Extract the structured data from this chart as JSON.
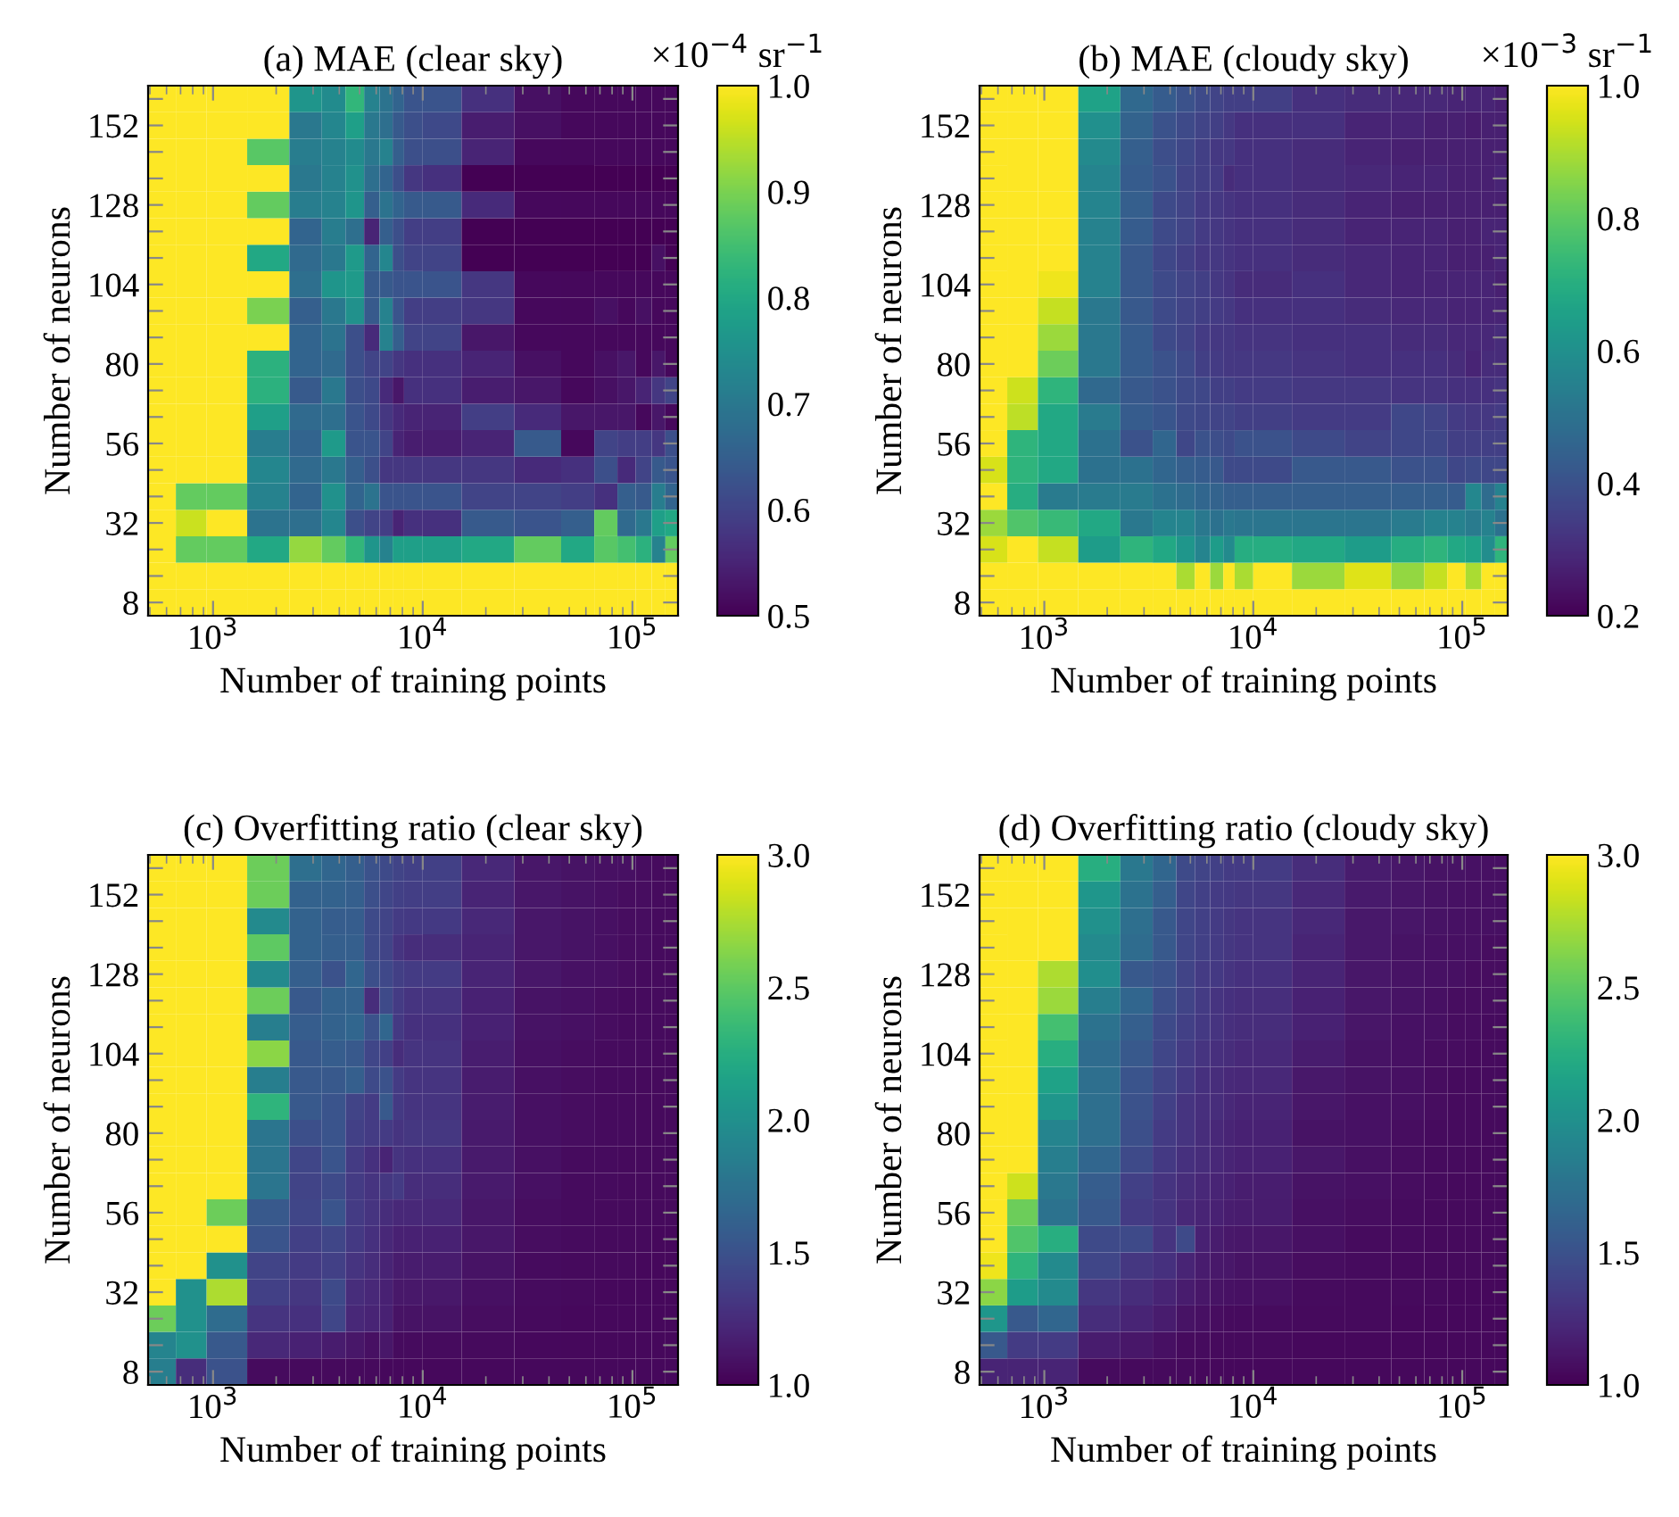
{
  "chart_data": [
    {
      "type": "heatmap",
      "title": "(a) MAE (clear sky)",
      "xlabel": "Number of training points",
      "ylabel": "Number of neurons",
      "clabel": "×10$^{−4}$ sr$^{−1}$",
      "x": [
        574,
        770,
        1128,
        1875,
        2851,
        3823,
        4800,
        5750,
        6730,
        7670,
        8650,
        11550,
        20300,
        36800,
        56800,
        76200,
        94400,
        114000,
        134000,
        154000
      ],
      "xlim": [
        490,
        165000
      ],
      "xticks": [
        {
          "value": 1000,
          "label": "10$^{3}$"
        },
        {
          "value": 10000,
          "label": "10$^{4}$"
        },
        {
          "value": 100000,
          "label": "10$^{5}$"
        }
      ],
      "log": "x",
      "y_categories": [
        null,
        "152",
        null,
        null,
        "128",
        null,
        null,
        "104",
        null,
        null,
        "80",
        null,
        null,
        "56",
        null,
        null,
        "32",
        null,
        null,
        "8"
      ],
      "clim": [
        0.5,
        1.0
      ],
      "cticks": [
        {
          "value": 0.5,
          "label": "0.5"
        },
        {
          "value": 0.6,
          "label": "0.6"
        },
        {
          "value": 0.7,
          "label": "0.7"
        },
        {
          "value": 0.8,
          "label": "0.8"
        },
        {
          "value": 0.9,
          "label": "0.9"
        },
        {
          "value": 1.0,
          "label": "1.0"
        }
      ],
      "cells": [
        [
          1,
          1,
          1,
          1,
          0.76,
          0.74,
          0.83,
          0.72,
          0.69,
          0.66,
          0.63,
          0.63,
          0.57,
          0.52,
          0.51,
          0.51,
          0.51,
          0.51,
          0.51,
          0.51
        ],
        [
          1,
          1,
          1,
          1,
          0.7,
          0.73,
          0.78,
          0.7,
          0.68,
          0.64,
          0.62,
          0.61,
          0.54,
          0.52,
          0.51,
          0.51,
          0.51,
          0.51,
          0.51,
          0.51
        ],
        [
          1,
          1,
          1,
          0.87,
          0.71,
          0.72,
          0.74,
          0.7,
          0.72,
          0.65,
          0.62,
          0.62,
          0.55,
          0.51,
          0.51,
          0.51,
          0.51,
          0.51,
          0.51,
          0.51
        ],
        [
          1,
          1,
          1,
          1,
          0.7,
          0.72,
          0.75,
          0.68,
          0.66,
          0.62,
          0.58,
          0.57,
          0.5,
          0.5,
          0.5,
          0.5,
          0.5,
          0.5,
          0.5,
          0.5
        ],
        [
          1,
          1,
          1,
          0.88,
          0.71,
          0.72,
          0.76,
          0.65,
          0.69,
          0.66,
          0.64,
          0.64,
          0.56,
          0.51,
          0.51,
          0.51,
          0.51,
          0.51,
          0.51,
          0.51
        ],
        [
          1,
          1,
          1,
          1,
          0.66,
          0.71,
          0.68,
          0.55,
          0.65,
          0.62,
          0.59,
          0.59,
          0.5,
          0.5,
          0.5,
          0.5,
          0.5,
          0.5,
          0.5,
          0.5
        ],
        [
          1,
          1,
          1,
          0.8,
          0.67,
          0.7,
          0.77,
          0.66,
          0.73,
          0.62,
          0.6,
          0.6,
          0.5,
          0.5,
          0.5,
          0.5,
          0.5,
          0.5,
          0.52,
          0.5
        ],
        [
          1,
          1,
          1,
          1,
          0.68,
          0.76,
          0.77,
          0.64,
          0.64,
          0.63,
          0.63,
          0.63,
          0.58,
          0.51,
          0.51,
          0.51,
          0.51,
          0.51,
          0.51,
          0.51
        ],
        [
          1,
          1,
          1,
          0.9,
          0.65,
          0.7,
          0.75,
          0.64,
          0.72,
          0.63,
          0.59,
          0.59,
          0.58,
          0.51,
          0.51,
          0.52,
          0.51,
          0.52,
          0.51,
          0.51
        ],
        [
          1,
          1,
          1,
          1,
          0.66,
          0.69,
          0.62,
          0.56,
          0.72,
          0.65,
          0.6,
          0.6,
          0.53,
          0.51,
          0.51,
          0.51,
          0.51,
          0.51,
          0.51,
          0.51
        ],
        [
          1,
          1,
          1,
          0.82,
          0.66,
          0.67,
          0.62,
          0.6,
          0.6,
          0.58,
          0.57,
          0.57,
          0.55,
          0.52,
          0.51,
          0.52,
          0.53,
          0.51,
          0.53,
          0.51
        ],
        [
          1,
          1,
          1,
          0.82,
          0.64,
          0.7,
          0.62,
          0.61,
          0.56,
          0.53,
          0.57,
          0.57,
          0.54,
          0.53,
          0.51,
          0.52,
          0.53,
          0.55,
          0.58,
          0.6
        ],
        [
          1,
          1,
          1,
          0.78,
          0.67,
          0.68,
          0.63,
          0.61,
          0.58,
          0.56,
          0.55,
          0.55,
          0.59,
          0.56,
          0.53,
          0.53,
          0.53,
          0.51,
          0.53,
          0.51
        ],
        [
          1,
          1,
          1,
          0.71,
          0.66,
          0.77,
          0.63,
          0.63,
          0.6,
          0.55,
          0.54,
          0.54,
          0.55,
          0.64,
          0.51,
          0.6,
          0.59,
          0.59,
          0.58,
          0.62
        ],
        [
          1,
          1,
          1,
          0.73,
          0.67,
          0.7,
          0.65,
          0.62,
          0.58,
          0.58,
          0.58,
          0.58,
          0.58,
          0.56,
          0.57,
          0.62,
          0.56,
          0.6,
          0.64,
          0.63
        ],
        [
          1,
          0.88,
          0.88,
          0.72,
          0.66,
          0.75,
          0.66,
          0.69,
          0.63,
          0.63,
          0.63,
          0.63,
          0.6,
          0.6,
          0.59,
          0.57,
          0.65,
          0.64,
          0.71,
          0.66
        ],
        [
          1,
          0.96,
          1,
          0.69,
          0.68,
          0.73,
          0.62,
          0.6,
          0.59,
          0.55,
          0.57,
          0.57,
          0.64,
          0.63,
          0.65,
          0.88,
          0.67,
          0.7,
          0.78,
          0.8
        ],
        [
          1,
          0.88,
          0.88,
          0.8,
          0.92,
          0.88,
          0.83,
          0.76,
          0.72,
          0.78,
          0.78,
          0.78,
          0.8,
          0.88,
          0.8,
          0.87,
          0.85,
          0.82,
          0.72,
          0.88
        ],
        [
          1,
          1,
          1,
          1,
          1,
          1,
          1,
          1,
          1,
          1,
          1,
          1,
          1,
          1,
          1,
          1,
          1,
          1,
          1,
          1
        ],
        [
          1,
          1,
          1,
          1,
          1,
          1,
          1,
          1,
          1,
          1,
          1,
          1,
          1,
          1,
          1,
          1,
          1,
          1,
          1,
          1
        ]
      ]
    },
    {
      "type": "heatmap",
      "title": "(b) MAE (cloudy sky)",
      "xlabel": "Number of training points",
      "ylabel": "Number of neurons",
      "clabel": "×10$^{−3}$ sr$^{−1}$",
      "x": [
        574,
        770,
        1128,
        1875,
        2851,
        3823,
        4800,
        5750,
        6730,
        7670,
        8650,
        11550,
        20300,
        36800,
        56800,
        76200,
        94400,
        114000,
        134000,
        154000
      ],
      "xlim": [
        490,
        165000
      ],
      "xticks": [
        {
          "value": 1000,
          "label": "10$^{3}$"
        },
        {
          "value": 10000,
          "label": "10$^{4}$"
        },
        {
          "value": 100000,
          "label": "10$^{5}$"
        }
      ],
      "log": "x",
      "y_categories": [
        null,
        "152",
        null,
        null,
        "128",
        null,
        null,
        "104",
        null,
        null,
        "80",
        null,
        null,
        "56",
        null,
        null,
        "32",
        null,
        null,
        "8"
      ],
      "clim": [
        0.2,
        1.0
      ],
      "cticks": [
        {
          "value": 0.2,
          "label": "0.2"
        },
        {
          "value": 0.4,
          "label": "0.4"
        },
        {
          "value": 0.6,
          "label": "0.6"
        },
        {
          "value": 0.8,
          "label": "0.8"
        },
        {
          "value": 1.0,
          "label": "1.0"
        }
      ],
      "cells": [
        [
          1,
          1,
          1,
          0.66,
          0.47,
          0.43,
          0.4,
          0.38,
          0.36,
          0.35,
          0.35,
          0.35,
          0.31,
          0.3,
          0.29,
          0.29,
          0.28,
          0.28,
          0.28,
          0.27
        ],
        [
          1,
          1,
          1,
          0.6,
          0.45,
          0.4,
          0.38,
          0.36,
          0.35,
          0.33,
          0.31,
          0.31,
          0.31,
          0.28,
          0.28,
          0.27,
          0.27,
          0.26,
          0.27,
          0.27
        ],
        [
          1,
          1,
          1,
          0.58,
          0.44,
          0.39,
          0.37,
          0.35,
          0.33,
          0.33,
          0.31,
          0.31,
          0.3,
          0.28,
          0.27,
          0.27,
          0.27,
          0.27,
          0.27,
          0.27
        ],
        [
          1,
          1,
          1,
          0.56,
          0.43,
          0.4,
          0.36,
          0.35,
          0.34,
          0.3,
          0.31,
          0.31,
          0.3,
          0.29,
          0.28,
          0.28,
          0.27,
          0.27,
          0.27,
          0.28
        ],
        [
          1,
          1,
          1,
          0.56,
          0.44,
          0.38,
          0.36,
          0.34,
          0.33,
          0.32,
          0.31,
          0.31,
          0.3,
          0.28,
          0.27,
          0.27,
          0.27,
          0.27,
          0.27,
          0.27
        ],
        [
          1,
          1,
          1,
          0.55,
          0.43,
          0.38,
          0.36,
          0.34,
          0.33,
          0.32,
          0.31,
          0.31,
          0.3,
          0.28,
          0.28,
          0.28,
          0.27,
          0.27,
          0.28,
          0.28
        ],
        [
          1,
          1,
          1,
          0.55,
          0.42,
          0.37,
          0.35,
          0.33,
          0.33,
          0.32,
          0.31,
          0.31,
          0.3,
          0.29,
          0.28,
          0.28,
          0.27,
          0.27,
          0.27,
          0.28
        ],
        [
          1,
          1,
          0.98,
          0.55,
          0.42,
          0.38,
          0.36,
          0.35,
          0.33,
          0.32,
          0.3,
          0.3,
          0.31,
          0.29,
          0.28,
          0.28,
          0.28,
          0.28,
          0.28,
          0.27
        ],
        [
          1,
          1,
          0.93,
          0.52,
          0.42,
          0.38,
          0.36,
          0.35,
          0.34,
          0.33,
          0.31,
          0.31,
          0.31,
          0.3,
          0.29,
          0.29,
          0.28,
          0.28,
          0.28,
          0.28
        ],
        [
          1,
          1,
          0.88,
          0.52,
          0.43,
          0.38,
          0.36,
          0.34,
          0.33,
          0.33,
          0.32,
          0.32,
          0.31,
          0.31,
          0.3,
          0.3,
          0.29,
          0.29,
          0.29,
          0.3
        ],
        [
          1,
          1,
          0.82,
          0.52,
          0.43,
          0.4,
          0.38,
          0.35,
          0.34,
          0.33,
          0.33,
          0.33,
          0.32,
          0.31,
          0.31,
          0.31,
          0.3,
          0.28,
          0.3,
          0.3
        ],
        [
          1,
          0.94,
          0.72,
          0.47,
          0.42,
          0.4,
          0.38,
          0.37,
          0.35,
          0.35,
          0.34,
          0.34,
          0.33,
          0.33,
          0.32,
          0.32,
          0.31,
          0.31,
          0.31,
          0.32
        ],
        [
          1,
          0.92,
          0.68,
          0.53,
          0.43,
          0.41,
          0.38,
          0.37,
          0.36,
          0.36,
          0.35,
          0.35,
          0.34,
          0.34,
          0.37,
          0.36,
          0.34,
          0.33,
          0.33,
          0.34
        ],
        [
          1,
          0.72,
          0.68,
          0.5,
          0.4,
          0.46,
          0.37,
          0.4,
          0.39,
          0.38,
          0.4,
          0.4,
          0.38,
          0.36,
          0.37,
          0.37,
          0.35,
          0.35,
          0.35,
          0.35
        ],
        [
          0.95,
          0.72,
          0.68,
          0.5,
          0.5,
          0.46,
          0.44,
          0.43,
          0.42,
          0.38,
          0.38,
          0.38,
          0.42,
          0.42,
          0.4,
          0.4,
          0.37,
          0.38,
          0.37,
          0.37
        ],
        [
          1,
          0.7,
          0.53,
          0.53,
          0.53,
          0.5,
          0.48,
          0.46,
          0.45,
          0.44,
          0.44,
          0.44,
          0.44,
          0.44,
          0.44,
          0.44,
          0.43,
          0.57,
          0.48,
          0.55
        ],
        [
          0.88,
          0.78,
          0.74,
          0.68,
          0.52,
          0.56,
          0.56,
          0.52,
          0.5,
          0.52,
          0.51,
          0.51,
          0.51,
          0.51,
          0.53,
          0.55,
          0.55,
          0.53,
          0.55,
          0.5
        ],
        [
          0.95,
          1,
          0.93,
          0.64,
          0.72,
          0.68,
          0.62,
          0.56,
          0.64,
          0.58,
          0.7,
          0.7,
          0.68,
          0.64,
          0.7,
          0.72,
          0.68,
          0.66,
          0.59,
          0.72
        ],
        [
          1,
          1,
          1,
          1,
          1,
          1,
          0.9,
          1,
          0.88,
          1,
          0.9,
          1,
          0.88,
          0.96,
          0.87,
          0.93,
          1,
          0.9,
          1,
          1
        ],
        [
          1,
          1,
          1,
          1,
          1,
          1,
          1,
          1,
          1,
          1,
          1,
          1,
          1,
          1,
          1,
          1,
          1,
          1,
          1,
          1
        ]
      ]
    },
    {
      "type": "heatmap",
      "title": "(c) Overfitting ratio (clear sky)",
      "xlabel": "Number of training points",
      "ylabel": "Number of neurons",
      "x": [
        574,
        770,
        1128,
        1875,
        2851,
        3823,
        4800,
        5750,
        6730,
        7670,
        8650,
        11550,
        20300,
        36800,
        56800,
        76200,
        94400,
        114000,
        134000,
        154000
      ],
      "xlim": [
        490,
        165000
      ],
      "xticks": [
        {
          "value": 1000,
          "label": "10$^{3}$"
        },
        {
          "value": 10000,
          "label": "10$^{4}$"
        },
        {
          "value": 100000,
          "label": "10$^{5}$"
        }
      ],
      "log": "x",
      "y_categories": [
        null,
        "152",
        null,
        null,
        "128",
        null,
        null,
        "104",
        null,
        null,
        "80",
        null,
        null,
        "56",
        null,
        null,
        "32",
        null,
        null,
        "8"
      ],
      "clim": [
        1.0,
        3.0
      ],
      "cticks": [
        {
          "value": 1.0,
          "label": "1.0"
        },
        {
          "value": 1.5,
          "label": "1.5"
        },
        {
          "value": 2.0,
          "label": "2.0"
        },
        {
          "value": 2.5,
          "label": "2.5"
        },
        {
          "value": 3.0,
          "label": "3.0"
        }
      ],
      "cells": [
        [
          3,
          3,
          3,
          2.55,
          1.72,
          1.65,
          1.6,
          1.5,
          1.45,
          1.4,
          1.38,
          1.38,
          1.22,
          1.12,
          1.1,
          1.08,
          1.08,
          1.07,
          1.06,
          1.06
        ],
        [
          3,
          3,
          3,
          2.55,
          1.62,
          1.62,
          1.6,
          1.48,
          1.42,
          1.38,
          1.36,
          1.36,
          1.2,
          1.12,
          1.1,
          1.08,
          1.07,
          1.07,
          1.06,
          1.06
        ],
        [
          3,
          3,
          3,
          1.95,
          1.62,
          1.58,
          1.58,
          1.45,
          1.4,
          1.35,
          1.33,
          1.33,
          1.22,
          1.12,
          1.1,
          1.08,
          1.07,
          1.07,
          1.06,
          1.06
        ],
        [
          3,
          3,
          3,
          2.5,
          1.62,
          1.6,
          1.6,
          1.45,
          1.4,
          1.3,
          1.25,
          1.25,
          1.2,
          1.12,
          1.1,
          1.08,
          1.07,
          1.07,
          1.06,
          1.06
        ],
        [
          3,
          3,
          3,
          1.95,
          1.6,
          1.5,
          1.65,
          1.48,
          1.43,
          1.37,
          1.35,
          1.35,
          1.2,
          1.12,
          1.09,
          1.08,
          1.07,
          1.06,
          1.06,
          1.06
        ],
        [
          3,
          3,
          3,
          2.55,
          1.55,
          1.62,
          1.62,
          1.25,
          1.45,
          1.35,
          1.3,
          1.3,
          1.18,
          1.1,
          1.08,
          1.07,
          1.06,
          1.06,
          1.06,
          1.06
        ],
        [
          3,
          3,
          3,
          1.85,
          1.58,
          1.62,
          1.65,
          1.5,
          1.65,
          1.33,
          1.28,
          1.28,
          1.18,
          1.1,
          1.08,
          1.07,
          1.06,
          1.06,
          1.06,
          1.05
        ],
        [
          3,
          3,
          3,
          2.65,
          1.55,
          1.58,
          1.55,
          1.42,
          1.38,
          1.25,
          1.3,
          1.3,
          1.16,
          1.08,
          1.07,
          1.06,
          1.06,
          1.06,
          1.05,
          1.05
        ],
        [
          3,
          3,
          3,
          1.85,
          1.55,
          1.55,
          1.6,
          1.45,
          1.5,
          1.35,
          1.3,
          1.3,
          1.15,
          1.08,
          1.07,
          1.06,
          1.06,
          1.05,
          1.05,
          1.05
        ],
        [
          3,
          3,
          3,
          2.3,
          1.55,
          1.52,
          1.4,
          1.35,
          1.55,
          1.33,
          1.3,
          1.3,
          1.15,
          1.08,
          1.07,
          1.06,
          1.06,
          1.05,
          1.05,
          1.05
        ],
        [
          3,
          3,
          3,
          1.78,
          1.48,
          1.52,
          1.38,
          1.35,
          1.35,
          1.3,
          1.32,
          1.32,
          1.14,
          1.08,
          1.07,
          1.06,
          1.06,
          1.05,
          1.05,
          1.05
        ],
        [
          3,
          3,
          3,
          1.78,
          1.42,
          1.52,
          1.35,
          1.28,
          1.2,
          1.3,
          1.28,
          1.28,
          1.14,
          1.08,
          1.06,
          1.06,
          1.05,
          1.05,
          1.05,
          1.05
        ],
        [
          3,
          3,
          3,
          1.78,
          1.4,
          1.45,
          1.35,
          1.3,
          1.32,
          1.35,
          1.25,
          1.25,
          1.14,
          1.08,
          1.06,
          1.06,
          1.05,
          1.05,
          1.05,
          1.05
        ],
        [
          3,
          3,
          2.55,
          1.55,
          1.42,
          1.52,
          1.35,
          1.3,
          1.25,
          1.22,
          1.22,
          1.22,
          1.12,
          1.07,
          1.06,
          1.05,
          1.05,
          1.05,
          1.05,
          1.05
        ],
        [
          3,
          3,
          3,
          1.52,
          1.38,
          1.42,
          1.33,
          1.28,
          1.22,
          1.18,
          1.18,
          1.18,
          1.12,
          1.07,
          1.06,
          1.05,
          1.05,
          1.05,
          1.04,
          1.04
        ],
        [
          3,
          3,
          2.0,
          1.4,
          1.35,
          1.38,
          1.3,
          1.25,
          1.2,
          1.15,
          1.15,
          1.15,
          1.1,
          1.06,
          1.05,
          1.05,
          1.05,
          1.04,
          1.04,
          1.04
        ],
        [
          3,
          2.0,
          2.75,
          1.38,
          1.32,
          1.45,
          1.25,
          1.22,
          1.18,
          1.13,
          1.13,
          1.13,
          1.08,
          1.06,
          1.05,
          1.04,
          1.04,
          1.04,
          1.04,
          1.04
        ],
        [
          2.55,
          2.0,
          1.7,
          1.3,
          1.28,
          1.42,
          1.22,
          1.2,
          1.18,
          1.1,
          1.1,
          1.1,
          1.07,
          1.05,
          1.04,
          1.04,
          1.04,
          1.04,
          1.04,
          1.04
        ],
        [
          1.9,
          2.0,
          1.55,
          1.22,
          1.18,
          1.15,
          1.12,
          1.08,
          1.12,
          1.06,
          1.06,
          1.06,
          1.05,
          1.04,
          1.04,
          1.04,
          1.04,
          1.04,
          1.04,
          1.04
        ],
        [
          1.85,
          1.25,
          1.5,
          1.06,
          1.05,
          1.05,
          1.05,
          1.05,
          1.04,
          1.04,
          1.04,
          1.04,
          1.04,
          1.04,
          1.04,
          1.04,
          1.04,
          1.04,
          1.04,
          1.04
        ]
      ]
    },
    {
      "type": "heatmap",
      "title": "(d) Overfitting ratio (cloudy sky)",
      "xlabel": "Number of training points",
      "ylabel": "Number of neurons",
      "x": [
        574,
        770,
        1128,
        1875,
        2851,
        3823,
        4800,
        5750,
        6730,
        7670,
        8650,
        11550,
        20300,
        36800,
        56800,
        76200,
        94400,
        114000,
        134000,
        154000
      ],
      "xlim": [
        490,
        165000
      ],
      "xticks": [
        {
          "value": 1000,
          "label": "10$^{3}$"
        },
        {
          "value": 10000,
          "label": "10$^{4}$"
        },
        {
          "value": 100000,
          "label": "10$^{5}$"
        }
      ],
      "log": "x",
      "y_categories": [
        null,
        "152",
        null,
        null,
        "128",
        null,
        null,
        "104",
        null,
        null,
        "80",
        null,
        null,
        "56",
        null,
        null,
        "32",
        null,
        null,
        "8"
      ],
      "clim": [
        1.0,
        3.0
      ],
      "cticks": [
        {
          "value": 1.0,
          "label": "1.0"
        },
        {
          "value": 1.5,
          "label": "1.5"
        },
        {
          "value": 2.0,
          "label": "2.0"
        },
        {
          "value": 2.5,
          "label": "2.5"
        },
        {
          "value": 3.0,
          "label": "3.0"
        }
      ],
      "cells": [
        [
          3,
          3,
          3,
          2.25,
          1.8,
          1.65,
          1.45,
          1.4,
          1.38,
          1.35,
          1.35,
          1.35,
          1.25,
          1.15,
          1.12,
          1.1,
          1.1,
          1.09,
          1.08,
          1.08
        ],
        [
          3,
          3,
          3,
          2.05,
          1.75,
          1.6,
          1.42,
          1.38,
          1.35,
          1.33,
          1.32,
          1.32,
          1.22,
          1.14,
          1.11,
          1.1,
          1.09,
          1.08,
          1.08,
          1.08
        ],
        [
          3,
          3,
          3,
          2.0,
          1.72,
          1.55,
          1.42,
          1.38,
          1.35,
          1.32,
          1.3,
          1.3,
          1.22,
          1.13,
          1.11,
          1.1,
          1.09,
          1.08,
          1.08,
          1.08
        ],
        [
          3,
          3,
          3,
          1.95,
          1.7,
          1.55,
          1.42,
          1.38,
          1.35,
          1.32,
          1.3,
          1.3,
          1.2,
          1.13,
          1.1,
          1.09,
          1.08,
          1.08,
          1.07,
          1.07
        ],
        [
          3,
          3,
          2.75,
          1.98,
          1.55,
          1.5,
          1.4,
          1.35,
          1.33,
          1.3,
          1.28,
          1.28,
          1.2,
          1.12,
          1.1,
          1.09,
          1.08,
          1.07,
          1.07,
          1.07
        ],
        [
          3,
          3,
          2.7,
          1.85,
          1.65,
          1.48,
          1.4,
          1.35,
          1.3,
          1.28,
          1.26,
          1.26,
          1.18,
          1.12,
          1.1,
          1.08,
          1.07,
          1.07,
          1.07,
          1.07
        ],
        [
          3,
          3,
          2.4,
          1.75,
          1.6,
          1.45,
          1.38,
          1.33,
          1.3,
          1.27,
          1.25,
          1.25,
          1.18,
          1.11,
          1.09,
          1.08,
          1.07,
          1.07,
          1.06,
          1.06
        ],
        [
          3,
          3,
          2.25,
          1.7,
          1.55,
          1.42,
          1.35,
          1.3,
          1.27,
          1.25,
          1.23,
          1.23,
          1.15,
          1.1,
          1.08,
          1.07,
          1.07,
          1.06,
          1.06,
          1.06
        ],
        [
          3,
          3,
          2.15,
          1.72,
          1.52,
          1.4,
          1.33,
          1.28,
          1.25,
          1.23,
          1.22,
          1.22,
          1.13,
          1.1,
          1.08,
          1.07,
          1.06,
          1.06,
          1.06,
          1.06
        ],
        [
          3,
          3,
          2.05,
          1.72,
          1.5,
          1.38,
          1.3,
          1.27,
          1.25,
          1.22,
          1.2,
          1.2,
          1.12,
          1.09,
          1.08,
          1.07,
          1.06,
          1.06,
          1.06,
          1.06
        ],
        [
          3,
          3,
          1.9,
          1.72,
          1.48,
          1.35,
          1.3,
          1.25,
          1.22,
          1.2,
          1.18,
          1.18,
          1.1,
          1.09,
          1.07,
          1.06,
          1.06,
          1.06,
          1.05,
          1.05
        ],
        [
          3,
          3,
          1.85,
          1.65,
          1.45,
          1.33,
          1.28,
          1.25,
          1.22,
          1.2,
          1.18,
          1.18,
          1.12,
          1.08,
          1.07,
          1.06,
          1.06,
          1.05,
          1.05,
          1.05
        ],
        [
          3,
          2.85,
          1.8,
          1.58,
          1.38,
          1.3,
          1.25,
          1.22,
          1.2,
          1.18,
          1.16,
          1.16,
          1.1,
          1.08,
          1.07,
          1.06,
          1.05,
          1.05,
          1.05,
          1.05
        ],
        [
          3,
          2.55,
          1.75,
          1.55,
          1.35,
          1.3,
          1.22,
          1.2,
          1.18,
          1.16,
          1.15,
          1.15,
          1.08,
          1.07,
          1.06,
          1.05,
          1.05,
          1.05,
          1.05,
          1.05
        ],
        [
          3,
          2.45,
          2.25,
          1.45,
          1.45,
          1.3,
          1.45,
          1.18,
          1.15,
          1.13,
          1.12,
          1.12,
          1.08,
          1.06,
          1.06,
          1.05,
          1.05,
          1.05,
          1.05,
          1.05
        ],
        [
          2.95,
          2.3,
          1.95,
          1.42,
          1.32,
          1.28,
          1.2,
          1.15,
          1.13,
          1.12,
          1.1,
          1.1,
          1.07,
          1.06,
          1.05,
          1.05,
          1.05,
          1.05,
          1.05,
          1.05
        ],
        [
          2.65,
          2.1,
          1.95,
          1.32,
          1.25,
          1.2,
          1.15,
          1.12,
          1.1,
          1.09,
          1.08,
          1.08,
          1.06,
          1.05,
          1.05,
          1.05,
          1.04,
          1.04,
          1.04,
          1.04
        ],
        [
          2.05,
          1.55,
          1.65,
          1.25,
          1.2,
          1.15,
          1.1,
          1.08,
          1.07,
          1.06,
          1.06,
          1.06,
          1.05,
          1.05,
          1.04,
          1.04,
          1.04,
          1.04,
          1.04,
          1.04
        ],
        [
          1.55,
          1.35,
          1.35,
          1.15,
          1.12,
          1.08,
          1.06,
          1.06,
          1.05,
          1.05,
          1.05,
          1.05,
          1.04,
          1.04,
          1.04,
          1.04,
          1.04,
          1.04,
          1.04,
          1.04
        ],
        [
          1.2,
          1.2,
          1.2,
          1.06,
          1.05,
          1.05,
          1.05,
          1.04,
          1.04,
          1.04,
          1.04,
          1.04,
          1.04,
          1.04,
          1.04,
          1.04,
          1.04,
          1.04,
          1.04,
          1.04
        ]
      ]
    }
  ]
}
